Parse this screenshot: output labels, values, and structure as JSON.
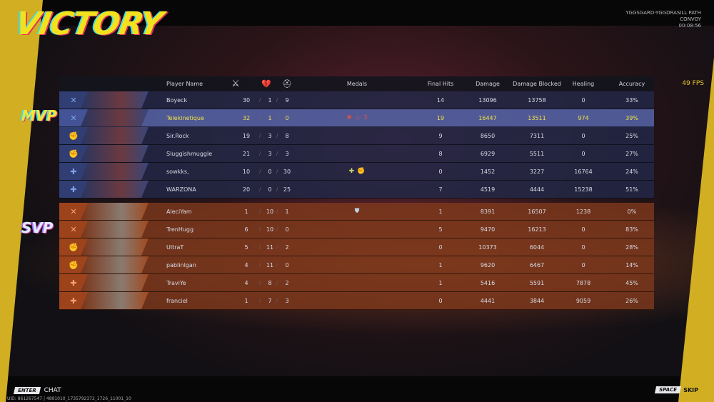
{
  "header": {
    "title": "VICTORY",
    "map": "YGGSGARD-YGGDRASILL PATH",
    "mode": "CONVOY",
    "time": "00:08:56",
    "fps": "49 FPS"
  },
  "badges": {
    "mvp": "MVP",
    "svp": "SVP"
  },
  "columns": {
    "player_name": "Player Name",
    "kills_icon": "crossed-swords-icon",
    "deaths_icon": "broken-heart-icon",
    "assists_icon": "assist-icon",
    "medals": "Medals",
    "final_hits": "Final Hits",
    "damage": "Damage",
    "damage_blocked": "Damage Blocked",
    "healing": "Healing",
    "accuracy": "Accuracy"
  },
  "colors": {
    "blue_team": "#222846",
    "highlight": "#5260a0",
    "orange_team": "#823a1c",
    "highlight_text": "#f0e048",
    "accent_yellow": "#d1ae22"
  },
  "teams": [
    {
      "side": "blue",
      "players": [
        {
          "role": "vanguard",
          "name": "Boyeck",
          "k": "30",
          "d": "1",
          "a": "9",
          "medals": [],
          "final_hits": "14",
          "damage": "13096",
          "blocked": "13758",
          "healing": "0",
          "accuracy": "33%"
        },
        {
          "role": "vanguard",
          "name": "Telekinetique",
          "k": "32",
          "d": "1",
          "a": "0",
          "medals": [
            "✖",
            "♨",
            "3"
          ],
          "final_hits": "19",
          "damage": "16447",
          "blocked": "13511",
          "healing": "974",
          "accuracy": "39%",
          "highlight": true
        },
        {
          "role": "duelist",
          "name": "Sir.Rock",
          "k": "19",
          "d": "3",
          "a": "8",
          "medals": [],
          "final_hits": "9",
          "damage": "8650",
          "blocked": "7311",
          "healing": "0",
          "accuracy": "25%"
        },
        {
          "role": "duelist",
          "name": "Sluggishmuggle",
          "k": "21",
          "d": "3",
          "a": "3",
          "medals": [],
          "final_hits": "8",
          "damage": "6929",
          "blocked": "5511",
          "healing": "0",
          "accuracy": "27%"
        },
        {
          "role": "strategist",
          "name": "sowkks,",
          "k": "10",
          "d": "0",
          "a": "30",
          "medals": [
            "✚",
            "✊"
          ],
          "final_hits": "0",
          "damage": "1452",
          "blocked": "3227",
          "healing": "16764",
          "accuracy": "24%"
        },
        {
          "role": "strategist",
          "name": "WARZONA",
          "k": "20",
          "d": "0",
          "a": "25",
          "medals": [],
          "final_hits": "7",
          "damage": "4519",
          "blocked": "4444",
          "healing": "15238",
          "accuracy": "51%"
        }
      ]
    },
    {
      "side": "orange",
      "players": [
        {
          "role": "vanguard",
          "name": "AleciYam",
          "k": "1",
          "d": "10",
          "a": "1",
          "medals": [
            "⛊"
          ],
          "final_hits": "1",
          "damage": "8391",
          "blocked": "16507",
          "healing": "1238",
          "accuracy": "0%"
        },
        {
          "role": "vanguard",
          "name": "TrenHugg",
          "k": "6",
          "d": "10",
          "a": "0",
          "medals": [],
          "final_hits": "5",
          "damage": "9470",
          "blocked": "16213",
          "healing": "0",
          "accuracy": "83%"
        },
        {
          "role": "duelist",
          "name": "UltraT",
          "k": "5",
          "d": "11",
          "a": "2",
          "medals": [],
          "final_hits": "0",
          "damage": "10373",
          "blocked": "6044",
          "healing": "0",
          "accuracy": "28%"
        },
        {
          "role": "duelist",
          "name": "pablinlgan",
          "k": "4",
          "d": "11",
          "a": "0",
          "medals": [],
          "final_hits": "1",
          "damage": "9620",
          "blocked": "6467",
          "healing": "0",
          "accuracy": "14%"
        },
        {
          "role": "strategist",
          "name": "TraviYe",
          "k": "4",
          "d": "8",
          "a": "2",
          "medals": [],
          "final_hits": "1",
          "damage": "5416",
          "blocked": "5591",
          "healing": "7878",
          "accuracy": "45%"
        },
        {
          "role": "strategist",
          "name": "franciel",
          "k": "1",
          "d": "7",
          "a": "3",
          "medals": [],
          "final_hits": "0",
          "damage": "4441",
          "blocked": "3844",
          "healing": "9059",
          "accuracy": "26%"
        }
      ]
    }
  ],
  "footer": {
    "enter_key": "ENTER",
    "chat": "CHAT",
    "uid": "UID: 861267547 | 4891010_1735792372_1726_11001_10",
    "space_key": "SPACE",
    "skip": "SKIP"
  }
}
